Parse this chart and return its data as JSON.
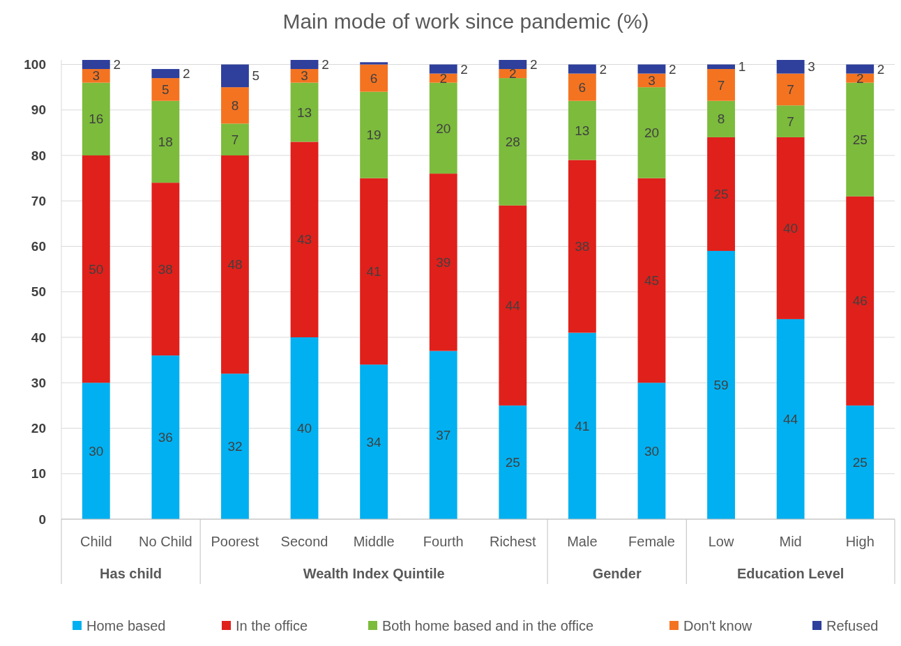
{
  "chart_data": {
    "type": "bar",
    "stacked": true,
    "title": "Main mode of work since pandemic (%)",
    "categories": [
      "Child",
      "No Child",
      "Poorest",
      "Second",
      "Middle",
      "Fourth",
      "Richest",
      "Male",
      "Female",
      "Low",
      "Mid",
      "High"
    ],
    "series": [
      {
        "name": "Home based",
        "color": "#00b0f0",
        "values": [
          30,
          36,
          32,
          40,
          34,
          37,
          25,
          41,
          30,
          59,
          44,
          25
        ],
        "value_labels": [
          "30",
          "36",
          "32",
          "40",
          "34",
          "37",
          "25",
          "41",
          "30",
          "59",
          "44",
          "25"
        ]
      },
      {
        "name": "In the office",
        "color": "#e0201b",
        "values": [
          50,
          38,
          48,
          43,
          41,
          39,
          44,
          38,
          45,
          25,
          40,
          46
        ],
        "value_labels": [
          "50",
          "38",
          "48",
          "43",
          "41",
          "39",
          "44",
          "38",
          "45",
          "25",
          "40",
          "46"
        ]
      },
      {
        "name": "Both home based and in the office",
        "color": "#7cbb3c",
        "values": [
          16,
          18,
          7,
          13,
          19,
          20,
          28,
          13,
          20,
          8,
          7,
          25
        ],
        "value_labels": [
          "16",
          "18",
          "7",
          "13",
          "19",
          "20",
          "28",
          "13",
          "20",
          "8",
          "7",
          "25"
        ]
      },
      {
        "name": "Don't know",
        "color": "#f47321",
        "values": [
          3,
          5,
          8,
          3,
          6,
          2,
          2,
          6,
          3,
          7,
          7,
          2
        ],
        "value_labels": [
          "3",
          "5",
          "8",
          "3",
          "6",
          "2",
          "2",
          "6",
          "3",
          "7",
          "7",
          "2"
        ]
      },
      {
        "name": "Refused",
        "color": "#2e3f9c",
        "values": [
          2,
          2,
          5,
          2,
          0.5,
          2,
          2,
          2,
          2,
          1,
          3,
          2
        ],
        "value_labels": [
          "2",
          "2",
          "5",
          "2",
          null,
          "2",
          "2",
          "2",
          "2",
          "1",
          "3",
          "2"
        ]
      }
    ],
    "annotations": [
      "Has child",
      "Wealth Index Quintile",
      "Gender",
      "Education Level"
    ],
    "ylim": [
      0,
      101
    ],
    "yticks": [
      0,
      10,
      20,
      30,
      40,
      50,
      60,
      70,
      80,
      90,
      100
    ],
    "grid": "y",
    "legend": "bottom"
  }
}
